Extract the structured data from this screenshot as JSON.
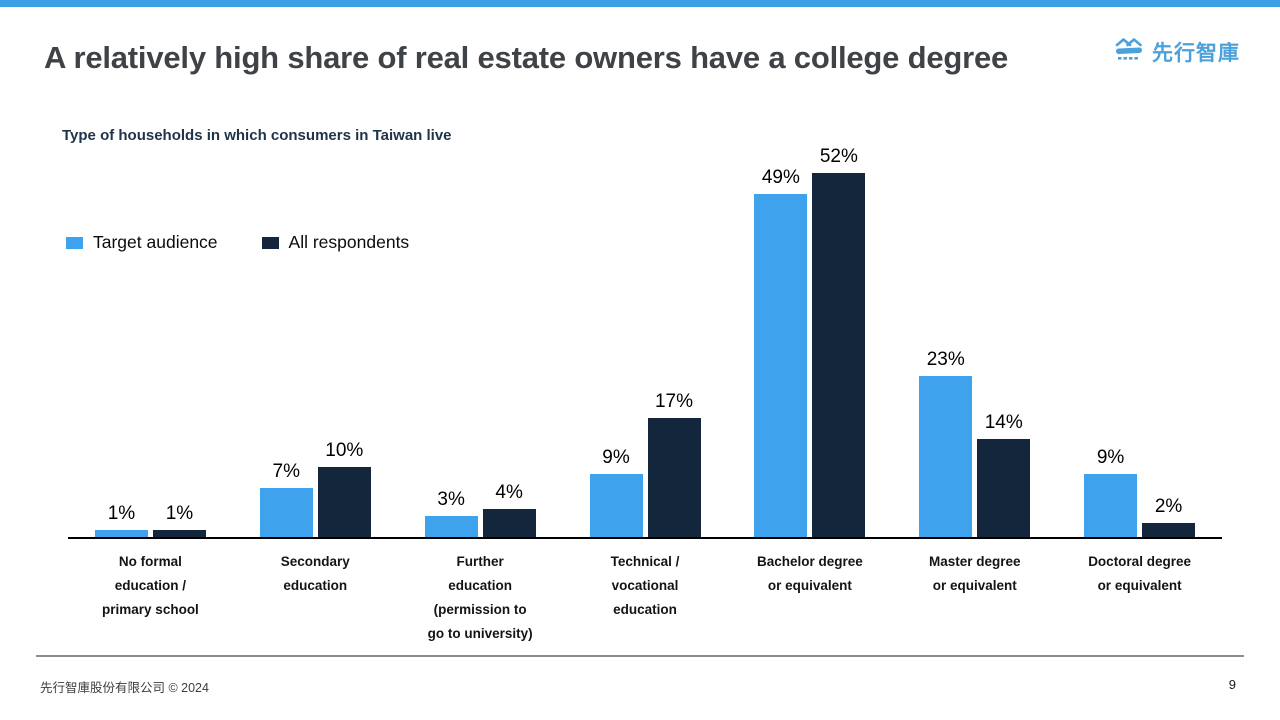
{
  "slide": {
    "title": "A relatively high share of real estate owners have a college degree",
    "logo": {
      "text": "先行智庫",
      "color": "#4BA1DB"
    },
    "footer": {
      "company": "先行智庫股份有限公司  © 2024",
      "page_number": "9"
    },
    "accent_color": "#3E9FE4"
  },
  "chart_data": {
    "type": "bar",
    "title": "Type of households in which consumers in Taiwan live",
    "categories": [
      "No formal\neducation /\nprimary school",
      "Secondary\neducation",
      "Further\neducation\n(permission to\ngo to university)",
      "Technical /\nvocational\neducation",
      "Bachelor degree\nor equivalent",
      "Master degree\nor equivalent",
      "Doctoral degree\nor equivalent"
    ],
    "series": [
      {
        "name": "Target audience",
        "color": "#3FA2EC",
        "values": [
          1,
          7,
          3,
          9,
          49,
          23,
          9
        ]
      },
      {
        "name": "All respondents",
        "color": "#13263C",
        "values": [
          1,
          10,
          4,
          17,
          52,
          14,
          2
        ]
      }
    ],
    "value_suffix": "%",
    "value_labels": true,
    "ylim": [
      0,
      52
    ],
    "grid": false,
    "legend_position": "upper-left",
    "axis": {
      "y_axis_hidden": true,
      "baseline_color": "#000000"
    }
  }
}
